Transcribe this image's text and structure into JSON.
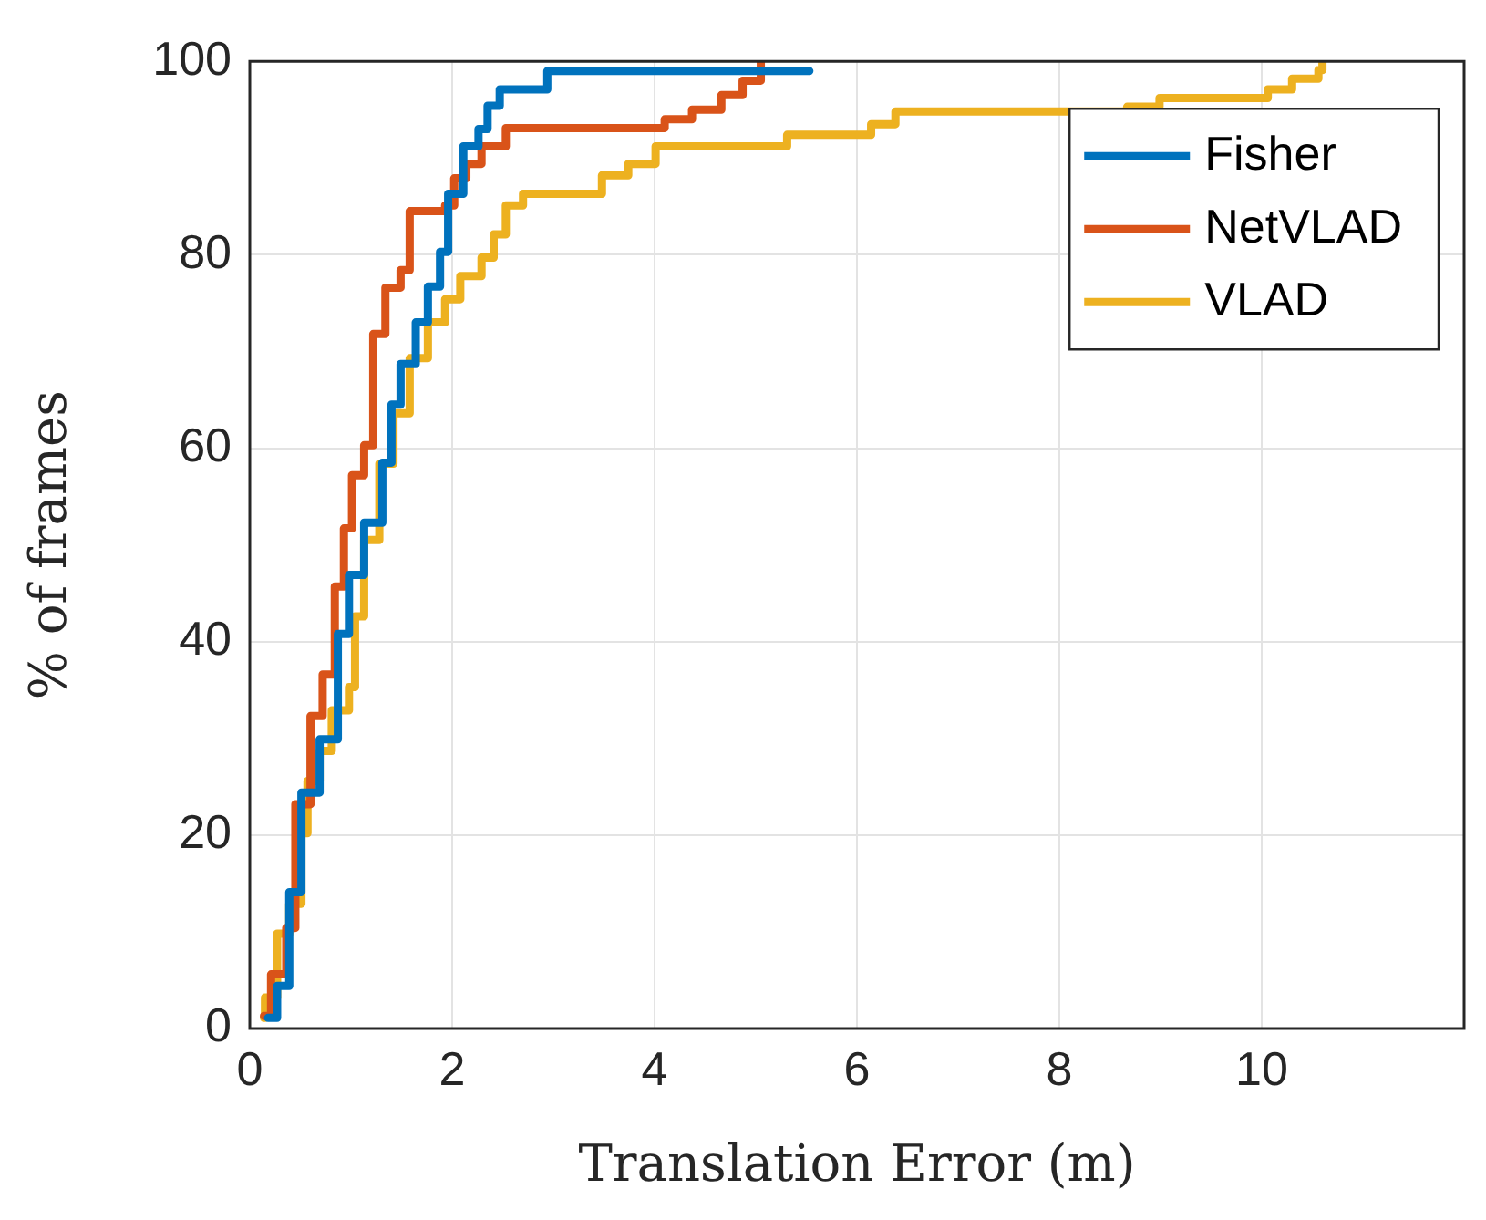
{
  "chart_data": {
    "type": "step",
    "xlabel": "Translation Error (m)",
    "ylabel": "% of frames",
    "xlim": [
      0,
      12
    ],
    "xticks": [
      0,
      2,
      4,
      6,
      8,
      10
    ],
    "ylim": [
      0,
      100
    ],
    "yticks": [
      0,
      20,
      40,
      60,
      80,
      100
    ],
    "grid": true,
    "legend": "top right",
    "line_style": "solid",
    "marker": "none",
    "series": [
      {
        "name": "Fisher",
        "color": "#0072bd",
        "x": [
          0.18,
          0.27,
          0.39,
          0.51,
          0.69,
          0.87,
          0.98,
          1.13,
          1.31,
          1.4,
          1.49,
          1.64,
          1.76,
          1.88,
          1.96,
          2.11,
          2.26,
          2.35,
          2.47,
          2.94,
          5.53
        ],
        "values": [
          1.1,
          4.4,
          14.1,
          24.4,
          29.9,
          40.8,
          46.9,
          52.3,
          58.5,
          64.5,
          68.7,
          73,
          76.7,
          80.3,
          86.3,
          91.2,
          93,
          95.4,
          97.1,
          99,
          99
        ]
      },
      {
        "name": "NetVLAD",
        "color": "#d95319",
        "x": [
          0.14,
          0.21,
          0.36,
          0.45,
          0.6,
          0.72,
          0.84,
          0.93,
          1.01,
          1.13,
          1.22,
          1.34,
          1.49,
          1.58,
          1.93,
          2.02,
          2.14,
          2.29,
          2.53,
          4.1,
          4.37,
          4.66,
          4.87,
          5.05,
          5.05
        ],
        "values": [
          1.3,
          5.6,
          10.4,
          23.2,
          32.3,
          36.6,
          45.7,
          51.7,
          57.2,
          60.3,
          71.8,
          76.6,
          78.4,
          84.5,
          85.1,
          87.9,
          89.4,
          91.2,
          93.1,
          94,
          95,
          96.5,
          98,
          99.2,
          100
        ]
      },
      {
        "name": "VLAD",
        "color": "#edb120",
        "x": [
          0.14,
          0.15,
          0.27,
          0.39,
          0.51,
          0.57,
          0.69,
          0.81,
          0.98,
          1.04,
          1.13,
          1.28,
          1.42,
          1.58,
          1.76,
          1.93,
          2.08,
          2.29,
          2.41,
          2.53,
          2.7,
          3.48,
          3.74,
          4.01,
          5.31,
          6.14,
          6.38,
          8.67,
          8.99,
          10.06,
          10.3,
          10.56,
          10.6
        ],
        "values": [
          1.1,
          3.2,
          9.8,
          12.9,
          20.2,
          25.6,
          28.7,
          32.9,
          35.3,
          42.6,
          50.5,
          58.4,
          63.6,
          69.3,
          73,
          75.4,
          77.8,
          79.7,
          82.1,
          85.1,
          86.3,
          88.2,
          89.4,
          91.2,
          92.4,
          93.5,
          94.8,
          95.3,
          96.2,
          97.1,
          98.2,
          99.1,
          100
        ]
      }
    ]
  }
}
